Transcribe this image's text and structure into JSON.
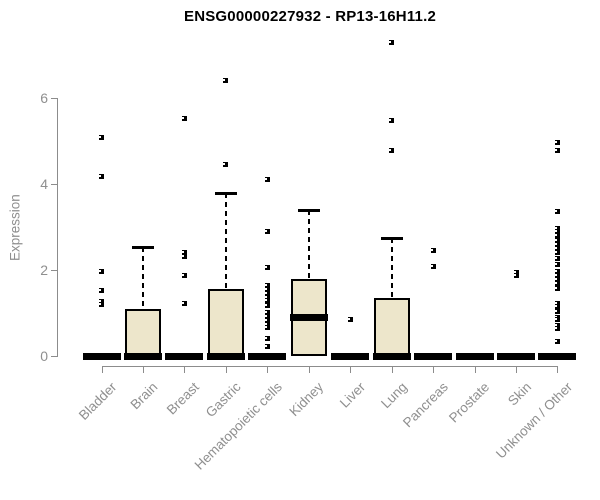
{
  "chart_data": {
    "type": "boxplot",
    "title": "ENSG00000227932 - RP13-16H11.2",
    "xlabel": "",
    "ylabel": "Expression",
    "yticks": [
      0,
      2,
      4,
      6
    ],
    "ylim": [
      0,
      7.55
    ],
    "grid": false,
    "legend": "none",
    "categories": [
      "Bladder",
      "Brain",
      "Breast",
      "Gastric",
      "Hematopoietic cells",
      "Kidney",
      "Liver",
      "Lung",
      "Pancreas",
      "Prostate",
      "Skin",
      "Unknown / Other"
    ],
    "boxes": [
      {
        "category": "Bladder",
        "q1": 0,
        "median": 0,
        "q3": 0,
        "whisker_low": 0,
        "whisker_high": 0,
        "outliers": [
          5.1,
          4.18,
          1.96,
          1.53,
          1.28,
          1.2
        ]
      },
      {
        "category": "Brain",
        "q1": 0,
        "median": 0,
        "q3": 1.1,
        "whisker_low": 0,
        "whisker_high": 2.55,
        "outliers": []
      },
      {
        "category": "Breast",
        "q1": 0,
        "median": 0,
        "q3": 0,
        "whisker_low": 0,
        "whisker_high": 0,
        "outliers": [
          5.53,
          2.42,
          2.31,
          1.88,
          1.23
        ]
      },
      {
        "category": "Gastric",
        "q1": 0,
        "median": 0,
        "q3": 1.57,
        "whisker_low": 0,
        "whisker_high": 3.8,
        "outliers": [
          6.42,
          4.45
        ]
      },
      {
        "category": "Hematopoietic cells",
        "q1": 0,
        "median": 0,
        "q3": 0,
        "whisker_low": 0,
        "whisker_high": 0,
        "outliers": [
          4.12,
          2.91,
          2.05,
          1.65,
          1.56,
          1.46,
          1.37,
          1.3,
          1.18,
          1.02,
          0.93,
          0.83,
          0.74,
          0.67,
          0.41,
          0.21
        ]
      },
      {
        "category": "Kidney",
        "q1": 0,
        "median": 0.9,
        "q3": 1.8,
        "whisker_low": 0,
        "whisker_high": 3.4,
        "outliers": []
      },
      {
        "category": "Liver",
        "q1": 0,
        "median": 0,
        "q3": 0,
        "whisker_low": 0,
        "whisker_high": 0,
        "outliers": [
          0.85
        ]
      },
      {
        "category": "Lung",
        "q1": 0,
        "median": 0,
        "q3": 1.36,
        "whisker_low": 0,
        "whisker_high": 2.76,
        "outliers": [
          7.3,
          5.48,
          4.78
        ]
      },
      {
        "category": "Pancreas",
        "q1": 0,
        "median": 0,
        "q3": 0,
        "whisker_low": 0,
        "whisker_high": 0,
        "outliers": [
          2.45,
          2.09
        ]
      },
      {
        "category": "Prostate",
        "q1": 0,
        "median": 0,
        "q3": 0,
        "whisker_low": 0,
        "whisker_high": 0,
        "outliers": []
      },
      {
        "category": "Skin",
        "q1": 0,
        "median": 0,
        "q3": 0,
        "whisker_low": 0,
        "whisker_high": 0,
        "outliers": [
          1.95,
          1.87
        ]
      },
      {
        "category": "Unknown / Other",
        "q1": 0,
        "median": 0,
        "q3": 0,
        "whisker_low": 0,
        "whisker_high": 0,
        "outliers": [
          4.97,
          4.78,
          3.37,
          2.98,
          2.9,
          2.81,
          2.7,
          2.6,
          2.5,
          2.42,
          2.27,
          2.14,
          1.97,
          1.88,
          1.79,
          1.69,
          1.58,
          1.22,
          1.16,
          1.04,
          0.9,
          0.85,
          0.72,
          0.64,
          0.33
        ]
      }
    ],
    "colors": {
      "box_fill": "#EDE6CB",
      "box_border": "#000000",
      "median": "#000000",
      "whisker": "#000000",
      "outlier": "#000000",
      "axis": "#8c8c8c",
      "tick_label": "#8f8f8f",
      "title": "#000000",
      "background": "#ffffff"
    }
  }
}
